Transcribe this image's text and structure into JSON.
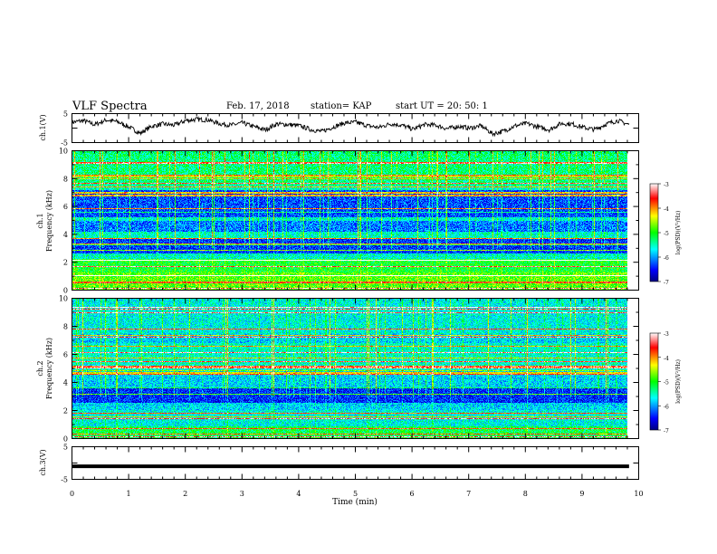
{
  "header": {
    "title": "VLF Spectra",
    "date": "Feb. 17, 2018",
    "station": "station= KAP",
    "start": "start  UT =   20: 50: 1"
  },
  "chart_data": [
    {
      "type": "line",
      "name": "ch1-waveform",
      "ylabel": "ch.1(V)",
      "ylim": [
        -5,
        5
      ],
      "yticks": [
        "5",
        "-5"
      ],
      "xlim": [
        0,
        10
      ],
      "x_extent_end": 9.83,
      "y_approx_points": [
        2.0,
        2.6,
        1.2,
        2.8,
        2.2,
        0.4,
        -1.8,
        0.6,
        1.4,
        1.0,
        2.6,
        3.0,
        2.8,
        1.5,
        1.0,
        1.8,
        0.5,
        -0.6,
        1.4,
        1.2,
        0.8,
        -0.5,
        -1.2,
        0.4,
        1.8,
        2.0,
        0.8,
        0.2,
        1.5,
        1.0,
        -0.4,
        1.2,
        1.0,
        -0.2,
        0.6,
        0.0,
        0.8,
        -2.0,
        -1.0,
        0.8,
        1.6,
        0.4,
        -0.6,
        1.6,
        1.4,
        0.2,
        -0.5,
        1.4,
        2.6,
        1.2
      ]
    },
    {
      "type": "heatmap",
      "name": "ch1-spectrogram",
      "ylabel": "ch.1\nFrequency (kHz)",
      "ylim": [
        0,
        10
      ],
      "yticks": [
        "0",
        "2",
        "4",
        "6",
        "8",
        "10"
      ],
      "colorbar": {
        "label": "log(PSD)(V²/Hz)",
        "range": [
          -7,
          -3
        ],
        "ticks": [
          "-3",
          "-4",
          "-5",
          "-6",
          "-7"
        ]
      }
    },
    {
      "type": "heatmap",
      "name": "ch2-spectrogram",
      "ylabel": "ch.2\nFrequency (kHz)",
      "ylim": [
        0,
        10
      ],
      "yticks": [
        "0",
        "2",
        "4",
        "6",
        "8",
        "10"
      ],
      "colorbar": {
        "label": "log(PSD)(V²/Hz)",
        "range": [
          -7,
          -3
        ],
        "ticks": [
          "-3",
          "-4",
          "-5",
          "-6",
          "-7"
        ]
      }
    },
    {
      "type": "line",
      "name": "ch3-waveform",
      "ylabel": "ch.3(V)",
      "ylim": [
        -5,
        5
      ],
      "yticks": [
        "5",
        "-5"
      ],
      "y_constant": -1.0,
      "x_extent_end": 9.83
    }
  ],
  "x_axis": {
    "label": "Time (min)",
    "range": [
      0,
      10
    ],
    "ticks": [
      "0",
      "1",
      "2",
      "3",
      "4",
      "5",
      "6",
      "7",
      "8",
      "9",
      "10"
    ]
  }
}
